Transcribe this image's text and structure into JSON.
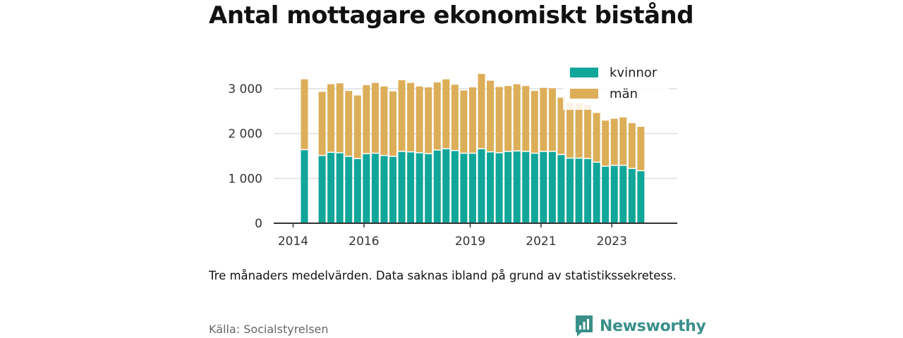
{
  "title": "Antal mottagare ekonomiskt bistånd",
  "note": "Tre månaders medelvärden. Data saknas ibland på grund av statistikssekretess.",
  "source": "Källa: Socialstyrelsen",
  "brand": {
    "name": "Newsworthy",
    "icon": "newsworthy-logo-icon",
    "color": "#3a8f8a"
  },
  "colors": {
    "kvinnor": "#10a69a",
    "man": "#dcae58"
  },
  "chart_data": {
    "type": "bar",
    "stacked": true,
    "legend_position": "top-right",
    "grid": true,
    "ylim": [
      0,
      3000
    ],
    "yticks": [
      0,
      1000,
      2000,
      3000
    ],
    "ytick_labels": [
      "0",
      "1 000",
      "2 000",
      "3 000"
    ],
    "xtick_labels": [
      "2014",
      "2016",
      "2019",
      "2021",
      "2023"
    ],
    "xtick_positions": [
      0,
      8,
      20,
      28,
      36
    ],
    "categories": [
      "1",
      "2",
      "3",
      "4",
      "5",
      "6",
      "7",
      "8",
      "9",
      "10",
      "11",
      "12",
      "13",
      "14",
      "15",
      "16",
      "17",
      "18",
      "19",
      "20",
      "21",
      "22",
      "23",
      "24",
      "25",
      "26",
      "27",
      "28",
      "29",
      "30",
      "31",
      "32",
      "33",
      "34",
      "35",
      "36",
      "37",
      "38",
      "39",
      "40",
      "41"
    ],
    "series": [
      {
        "name": "kvinnor",
        "values": [
          1630,
          null,
          1500,
          1570,
          1560,
          1480,
          1430,
          1540,
          1550,
          1500,
          1480,
          1590,
          1580,
          1560,
          1540,
          1620,
          1650,
          1610,
          1550,
          1550,
          1650,
          1580,
          1560,
          1590,
          1600,
          1590,
          1550,
          1590,
          1590,
          1520,
          1440,
          1440,
          1430,
          1350,
          1260,
          1280,
          1280,
          1210,
          1160,
          null,
          null
        ]
      },
      {
        "name": "män",
        "values": [
          1580,
          null,
          1430,
          1530,
          1560,
          1470,
          1420,
          1540,
          1580,
          1550,
          1460,
          1600,
          1550,
          1490,
          1490,
          1520,
          1560,
          1480,
          1410,
          1480,
          1680,
          1600,
          1480,
          1470,
          1500,
          1470,
          1400,
          1430,
          1420,
          1280,
          1260,
          1240,
          1210,
          1110,
          1030,
          1050,
          1080,
          1020,
          990,
          null,
          null
        ]
      }
    ]
  }
}
